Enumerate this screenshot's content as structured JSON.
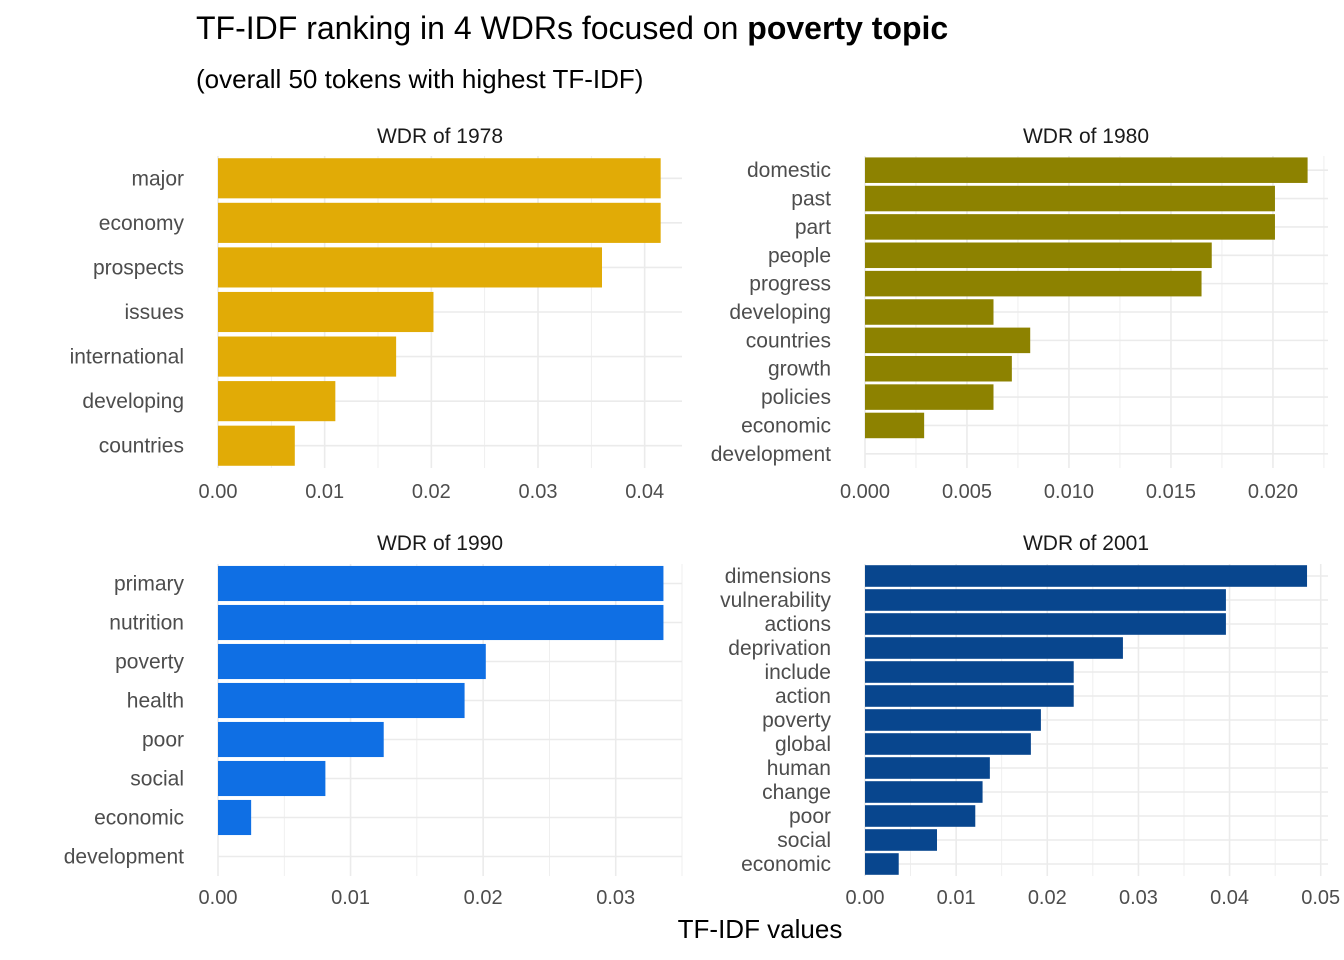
{
  "title": {
    "prefix": "TF-IDF ranking in 4 WDRs focused on ",
    "emphasis": "poverty topic"
  },
  "subtitle": "(overall 50 tokens with highest TF-IDF)",
  "x_axis_title": "TF-IDF values",
  "chart_data": [
    {
      "type": "bar",
      "orientation": "horizontal",
      "title": "WDR of  1978",
      "color": "#E1AB06",
      "categories": [
        "major",
        "economy",
        "prospects",
        "issues",
        "international",
        "developing",
        "countries"
      ],
      "values": [
        0.0415,
        0.0415,
        0.036,
        0.0202,
        0.0167,
        0.011,
        0.0072
      ],
      "xlim": [
        0,
        0.0435
      ],
      "xticks": [
        0,
        0.01,
        0.02,
        0.03,
        0.04
      ],
      "xtick_labels": [
        "0.00",
        "0.01",
        "0.02",
        "0.03",
        "0.04"
      ]
    },
    {
      "type": "bar",
      "orientation": "horizontal",
      "title": "WDR of  1980",
      "color": "#8D8200",
      "categories": [
        "domestic",
        "past",
        "part",
        "people",
        "progress",
        "developing",
        "countries",
        "growth",
        "policies",
        "economic",
        "development"
      ],
      "values": [
        0.0217,
        0.0201,
        0.0201,
        0.017,
        0.0165,
        0.0063,
        0.0081,
        0.0072,
        0.0063,
        0.0029,
        0
      ],
      "xlim": [
        0,
        0.0227
      ],
      "xticks": [
        0,
        0.005,
        0.01,
        0.015,
        0.02
      ],
      "xtick_labels": [
        "0.000",
        "0.005",
        "0.010",
        "0.015",
        "0.020"
      ]
    },
    {
      "type": "bar",
      "orientation": "horizontal",
      "title": "WDR of  1990",
      "color": "#0F6FE4",
      "categories": [
        "primary",
        "nutrition",
        "poverty",
        "health",
        "poor",
        "social",
        "economic",
        "development"
      ],
      "values": [
        0.0336,
        0.0336,
        0.0202,
        0.0186,
        0.0125,
        0.0081,
        0.0025,
        0
      ],
      "xlim": [
        0,
        0.035
      ],
      "xticks": [
        0,
        0.01,
        0.02,
        0.03
      ],
      "xtick_labels": [
        "0.00",
        "0.01",
        "0.02",
        "0.03"
      ]
    },
    {
      "type": "bar",
      "orientation": "horizontal",
      "title": "WDR of  2001",
      "color": "#08468E",
      "categories": [
        "dimensions",
        "vulnerability",
        "actions",
        "deprivation",
        "include",
        "action",
        "poverty",
        "global",
        "human",
        "change",
        "poor",
        "social",
        "economic"
      ],
      "values": [
        0.0485,
        0.0396,
        0.0396,
        0.0283,
        0.0229,
        0.0229,
        0.0193,
        0.0182,
        0.0137,
        0.0129,
        0.0121,
        0.0079,
        0.0037
      ],
      "xlim": [
        0,
        0.0508
      ],
      "xticks": [
        0,
        0.01,
        0.02,
        0.03,
        0.04,
        0.05
      ],
      "xtick_labels": [
        "0.00",
        "0.01",
        "0.02",
        "0.03",
        "0.04",
        "0.05"
      ]
    }
  ]
}
